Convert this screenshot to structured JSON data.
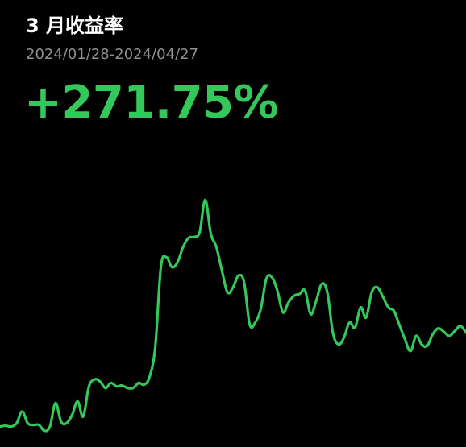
{
  "header": {
    "title": "3 月收益率",
    "date_range": "2024/01/28-2024/04/27",
    "return_value": "+271.75%"
  },
  "colors": {
    "background": "#000000",
    "title": "#ffffff",
    "date_range": "#8f8f8f",
    "accent_green": "#34c759"
  },
  "chart_data": {
    "type": "line",
    "title": "",
    "xlabel": "",
    "ylabel": "",
    "grid": false,
    "legend": "none",
    "ylim": [
      -10,
      280
    ],
    "series": [
      {
        "values": [
          0,
          1,
          0,
          4,
          18,
          4,
          2,
          2,
          -5,
          0,
          28,
          6,
          4,
          14,
          30,
          12,
          47,
          56,
          54,
          46,
          52,
          48,
          49,
          46,
          46,
          52,
          50,
          60,
          96,
          190,
          202,
          190,
          196,
          214,
          225,
          226,
          232,
          270,
          230,
          214,
          186,
          160,
          166,
          180,
          172,
          122,
          124,
          140,
          176,
          178,
          162,
          136,
          148,
          156,
          158,
          162,
          134,
          150,
          170,
          160,
          112,
          98,
          106,
          124,
          118,
          142,
          130,
          160,
          166,
          155,
          142,
          138,
          121,
          104,
          90,
          108,
          98,
          96,
          110,
          117,
          113,
          108,
          114,
          120,
          112
        ]
      }
    ]
  }
}
